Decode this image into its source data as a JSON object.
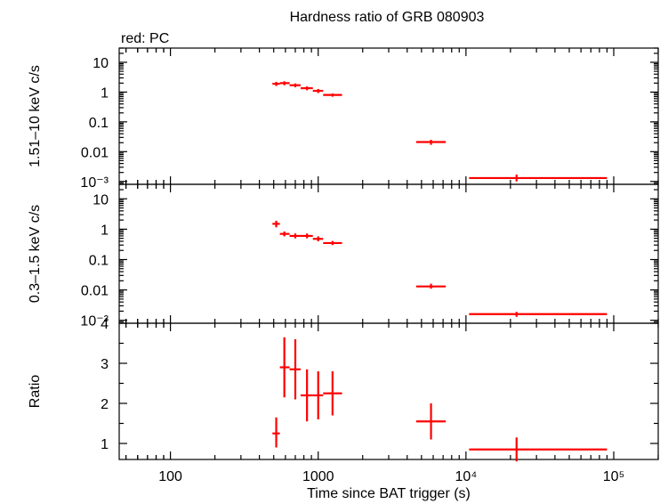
{
  "chart_data": {
    "type": "scatter",
    "title": "Hardness ratio of GRB 080903",
    "subtitle": "red: PC",
    "xlabel": "Time since BAT trigger (s)",
    "xscale": "log",
    "xlim": [
      45,
      200000
    ],
    "x_tick_labels": [
      "100",
      "1000",
      "10⁴",
      "10⁵"
    ],
    "x_tick_values": [
      100,
      1000,
      10000,
      100000
    ],
    "series_color": "#ff0000",
    "panels": [
      {
        "name": "hard",
        "ylabel": "1.51–10 keV c/s",
        "yscale": "log",
        "ylim": [
          0.0008,
          30
        ],
        "y_tick_labels": [
          "10",
          "1",
          "0.1",
          "0.01",
          "10⁻³"
        ],
        "y_tick_values": [
          10,
          1,
          0.1,
          0.01,
          0.001
        ],
        "points": [
          {
            "x": 520,
            "xlo": 490,
            "xhi": 550,
            "y": 1.9,
            "ylo": 1.6,
            "yhi": 2.2
          },
          {
            "x": 590,
            "xlo": 550,
            "xhi": 640,
            "y": 2.0,
            "ylo": 1.7,
            "yhi": 2.3
          },
          {
            "x": 700,
            "xlo": 640,
            "xhi": 760,
            "y": 1.7,
            "ylo": 1.45,
            "yhi": 1.95
          },
          {
            "x": 840,
            "xlo": 760,
            "xhi": 920,
            "y": 1.35,
            "ylo": 1.15,
            "yhi": 1.55
          },
          {
            "x": 1000,
            "xlo": 920,
            "xhi": 1080,
            "y": 1.1,
            "ylo": 0.93,
            "yhi": 1.27
          },
          {
            "x": 1250,
            "xlo": 1080,
            "xhi": 1450,
            "y": 0.8,
            "ylo": 0.7,
            "yhi": 0.9
          },
          {
            "x": 5800,
            "xlo": 4600,
            "xhi": 7300,
            "y": 0.021,
            "ylo": 0.017,
            "yhi": 0.025
          },
          {
            "x": 22000,
            "xlo": 10500,
            "xhi": 90000,
            "y": 0.0013,
            "ylo": 0.001,
            "yhi": 0.0017
          }
        ]
      },
      {
        "name": "soft",
        "ylabel": "0.3–1.5 keV c/s",
        "yscale": "log",
        "ylim": [
          0.0008,
          30
        ],
        "y_tick_labels": [
          "10",
          "1",
          "0.1",
          "0.01",
          "10⁻³"
        ],
        "y_tick_values": [
          10,
          1,
          0.1,
          0.01,
          0.001
        ],
        "points": [
          {
            "x": 520,
            "xlo": 490,
            "xhi": 550,
            "y": 1.5,
            "ylo": 1.15,
            "yhi": 1.9
          },
          {
            "x": 590,
            "xlo": 550,
            "xhi": 640,
            "y": 0.7,
            "ylo": 0.58,
            "yhi": 0.84
          },
          {
            "x": 700,
            "xlo": 640,
            "xhi": 760,
            "y": 0.6,
            "ylo": 0.5,
            "yhi": 0.72
          },
          {
            "x": 840,
            "xlo": 760,
            "xhi": 920,
            "y": 0.6,
            "ylo": 0.5,
            "yhi": 0.72
          },
          {
            "x": 1000,
            "xlo": 920,
            "xhi": 1080,
            "y": 0.48,
            "ylo": 0.4,
            "yhi": 0.58
          },
          {
            "x": 1250,
            "xlo": 1080,
            "xhi": 1450,
            "y": 0.35,
            "ylo": 0.3,
            "yhi": 0.41
          },
          {
            "x": 5800,
            "xlo": 4600,
            "xhi": 7300,
            "y": 0.013,
            "ylo": 0.011,
            "yhi": 0.016
          },
          {
            "x": 22000,
            "xlo": 10500,
            "xhi": 90000,
            "y": 0.0016,
            "ylo": 0.0013,
            "yhi": 0.0019
          }
        ]
      },
      {
        "name": "ratio",
        "ylabel": "Ratio",
        "yscale": "linear",
        "ylim": [
          0.6,
          4
        ],
        "y_tick_labels": [
          "4",
          "3",
          "2",
          "1"
        ],
        "y_tick_values": [
          4,
          3,
          2,
          1
        ],
        "points": [
          {
            "x": 520,
            "xlo": 490,
            "xhi": 550,
            "y": 1.25,
            "ylo": 0.9,
            "yhi": 1.65
          },
          {
            "x": 590,
            "xlo": 550,
            "xhi": 640,
            "y": 2.9,
            "ylo": 2.15,
            "yhi": 3.65
          },
          {
            "x": 700,
            "xlo": 640,
            "xhi": 760,
            "y": 2.85,
            "ylo": 2.1,
            "yhi": 3.6
          },
          {
            "x": 840,
            "xlo": 760,
            "xhi": 920,
            "y": 2.2,
            "ylo": 1.55,
            "yhi": 2.85
          },
          {
            "x": 1000,
            "xlo": 920,
            "xhi": 1080,
            "y": 2.2,
            "ylo": 1.6,
            "yhi": 2.8
          },
          {
            "x": 1250,
            "xlo": 1080,
            "xhi": 1450,
            "y": 2.25,
            "ylo": 1.7,
            "yhi": 2.8
          },
          {
            "x": 5800,
            "xlo": 4600,
            "xhi": 7300,
            "y": 1.55,
            "ylo": 1.1,
            "yhi": 2.0
          },
          {
            "x": 22000,
            "xlo": 10500,
            "xhi": 90000,
            "y": 0.85,
            "ylo": 0.55,
            "yhi": 1.15
          }
        ]
      }
    ]
  }
}
